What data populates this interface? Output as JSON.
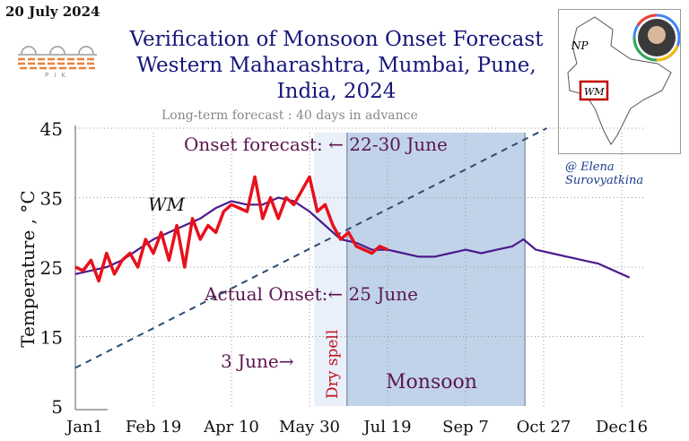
{
  "header": {
    "date": "20 July 2024",
    "title_lines": [
      "Verification of Monsoon Onset Forecast",
      "Western Maharashtra, Mumbai, Pune,",
      "India, 2024"
    ],
    "subtitle": "Long-term forecast : 40 days in advance",
    "logo_text": "PIK",
    "credit": "@ Elena Surovyatkina"
  },
  "map": {
    "labels": [
      "NP",
      "WM"
    ],
    "highlight_color": "#c00000"
  },
  "colors": {
    "observed": "#e8101c",
    "forecast_climatology": "#4b1a8c",
    "trend": "#2d4a73",
    "monsoon_band": "#c1d3e9",
    "dry_band": "#e9f0f9",
    "annotation": "#5a1650",
    "dry_text": "#c0101c"
  },
  "chart_data": {
    "type": "line",
    "ylabel": "Temperature , °C",
    "ylim": [
      5,
      45
    ],
    "yticks": [
      5,
      15,
      25,
      35,
      45
    ],
    "xlim_days": [
      0,
      365
    ],
    "xtick_labels": [
      "Jan1",
      "Feb 19",
      "Apr 10",
      "May 30",
      "Jul 19",
      "Sep 7",
      "Oct 27",
      "Dec16"
    ],
    "xtick_days": [
      0,
      50,
      100,
      150,
      200,
      250,
      300,
      350
    ],
    "grid": true,
    "region_label": "WM",
    "series": [
      {
        "role": "observed",
        "days": [
          0,
          5,
          10,
          15,
          20,
          25,
          30,
          35,
          40,
          45,
          50,
          55,
          60,
          65,
          70,
          75,
          80,
          85,
          90,
          95,
          100,
          105,
          110,
          115,
          120,
          125,
          130,
          135,
          140,
          145,
          150,
          155,
          160,
          165,
          170,
          175,
          180,
          185,
          190,
          195,
          200
        ],
        "values": [
          25,
          24.5,
          26,
          23,
          27,
          24,
          26,
          27,
          25,
          29,
          27,
          30,
          26,
          31,
          25,
          32,
          29,
          31,
          30,
          33,
          34,
          33.5,
          33,
          38,
          32,
          35,
          32,
          35,
          34,
          36,
          38,
          33,
          34,
          31,
          29,
          30,
          28,
          27.5,
          27,
          28,
          27.5
        ]
      },
      {
        "role": "forecast",
        "days": [
          0,
          10,
          20,
          30,
          40,
          50,
          60,
          70,
          80,
          90,
          100,
          110,
          120,
          130,
          140,
          150,
          160,
          170,
          180,
          190,
          200,
          210,
          220,
          230,
          240,
          250,
          260,
          270,
          280,
          287,
          295,
          305,
          315,
          325,
          335,
          345,
          355
        ],
        "values": [
          24,
          24.5,
          25,
          26,
          27.5,
          29,
          30,
          31,
          32,
          33.5,
          34.5,
          34,
          34,
          35,
          34.5,
          33,
          31,
          29,
          28.5,
          27.5,
          27.5,
          27,
          26.5,
          26.5,
          27,
          27.5,
          27,
          27.5,
          28,
          29,
          27.5,
          27,
          26.5,
          26,
          25.5,
          24.5,
          23.5
        ]
      },
      {
        "role": "trend",
        "days": [
          0,
          302
        ],
        "values": [
          10.5,
          45
        ]
      }
    ],
    "regions": [
      {
        "label": "Dry spell",
        "start_day": 153,
        "end_day": 174
      },
      {
        "label": "Monsoon",
        "start_day": 174,
        "end_day": 288
      }
    ],
    "annotations": {
      "onset_forecast": "Onset forecast: ← 22-30 June",
      "actual_onset": "Actual Onset:← 25 June",
      "dry_start": "3 June→"
    }
  }
}
